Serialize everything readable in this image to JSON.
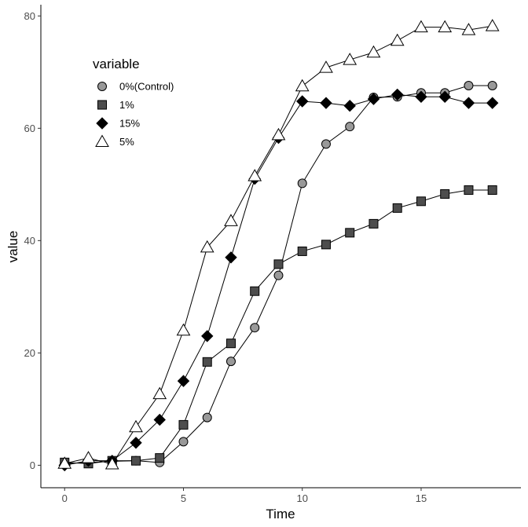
{
  "chart_data": {
    "type": "line",
    "title": "",
    "xlabel": "Time",
    "ylabel": "value",
    "xlim": [
      -1,
      19.2
    ],
    "ylim": [
      -4,
      82
    ],
    "x_ticks": [
      0,
      5,
      10,
      15
    ],
    "y_ticks": [
      0,
      20,
      40,
      60,
      80
    ],
    "grid": false,
    "legend": {
      "title": "variable",
      "placement": "top-left",
      "entries": [
        "0%(Control)",
        "1%",
        "15%",
        "5%"
      ]
    },
    "series": [
      {
        "name": "0%(Control)",
        "marker": "circle",
        "fill": "#999999",
        "x": [
          0,
          1,
          2,
          3,
          4,
          5,
          6,
          7,
          8,
          9,
          10,
          11,
          12,
          13,
          14,
          15,
          16,
          17,
          18
        ],
        "values": [
          0.3,
          0.5,
          0.7,
          0.8,
          0.5,
          4.2,
          8.5,
          18.5,
          24.5,
          33.8,
          50.2,
          57.2,
          60.3,
          65.5,
          65.6,
          66.3,
          66.3,
          67.6,
          67.6
        ]
      },
      {
        "name": "1%",
        "marker": "square",
        "fill": "#4d4d4d",
        "x": [
          0,
          1,
          2,
          3,
          4,
          5,
          6,
          7,
          8,
          9,
          10,
          11,
          12,
          13,
          14,
          15,
          16,
          17,
          18
        ],
        "values": [
          0.5,
          0.3,
          0.8,
          0.8,
          1.3,
          7.2,
          18.4,
          21.7,
          31.0,
          35.8,
          38.1,
          39.3,
          41.4,
          43.0,
          45.8,
          47.0,
          48.3,
          49.0,
          49.0
        ]
      },
      {
        "name": "15%",
        "marker": "diamond",
        "fill": "#000000",
        "x": [
          0,
          1,
          2,
          3,
          4,
          5,
          6,
          7,
          8,
          9,
          10,
          11,
          12,
          13,
          14,
          15,
          16,
          17,
          18
        ],
        "values": [
          0,
          0.8,
          0.8,
          4.0,
          8.1,
          15.0,
          23.0,
          37.0,
          51.0,
          58.3,
          64.8,
          64.5,
          64.0,
          65.2,
          66.0,
          65.6,
          65.6,
          64.5,
          64.5
        ]
      },
      {
        "name": "5%",
        "marker": "triangle",
        "fill": "#ffffff",
        "x": [
          0,
          1,
          2,
          3,
          4,
          5,
          6,
          7,
          8,
          9,
          10,
          11,
          12,
          13,
          14,
          15,
          16,
          17,
          18
        ],
        "values": [
          0.3,
          1.3,
          0.2,
          6.8,
          12.7,
          24.0,
          38.8,
          43.5,
          51.5,
          58.8,
          67.5,
          70.8,
          72.2,
          73.5,
          75.6,
          78.0,
          78.0,
          77.5,
          78.2
        ]
      }
    ]
  }
}
